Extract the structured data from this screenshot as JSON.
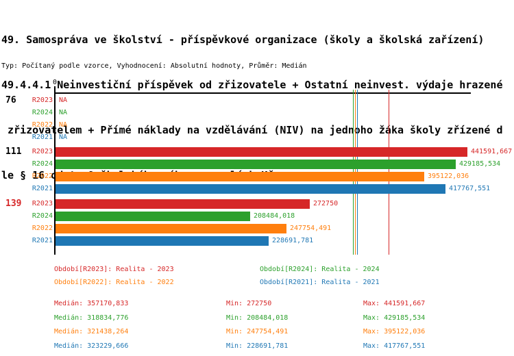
{
  "title_lines": [
    "49. Samospráva ve školství - příspěvkové organizace (školy a školská zařízení)",
    "49.4.4.1 Neinvestiční příspěvek od zřizovatele + Ostatní neinvest. výdaje hrazené",
    " zřizovatelem + Přímé náklady na vzdělávání (NIV) na jednoho žáka školy zřízené d",
    "le § 16 odst. 9 školského zákona v celých Kč"
  ],
  "subtitle": "Typ: Počítaný podle vzorce, Vyhodnocení: Absolutní hodnoty, Průměr: Medián",
  "colors": {
    "red": "#d62728",
    "green": "#2ca02c",
    "orange": "#ff7f0e",
    "blue": "#1f77b4",
    "axis": "#000000",
    "background": "#ffffff"
  },
  "chart_data": {
    "type": "bar",
    "orientation": "horizontal",
    "x_axis": {
      "zero_label": "0",
      "min": 0,
      "scale_max": 441591.667,
      "grid": false
    },
    "series_labels": [
      "R2023",
      "R2024",
      "R2022",
      "R2021"
    ],
    "series_colors": [
      "#d62728",
      "#2ca02c",
      "#ff7f0e",
      "#1f77b4"
    ],
    "na_text": "NA",
    "groups": [
      {
        "label": "76",
        "label_color": "#000000",
        "values": [
          null,
          null,
          null,
          null
        ],
        "display": [
          "NA",
          "NA",
          "NA",
          "NA"
        ]
      },
      {
        "label": "111",
        "label_color": "#000000",
        "values": [
          441591.667,
          429185.534,
          395122.036,
          417767.551
        ],
        "display": [
          "441591,667",
          "429185,534",
          "395122,036",
          "417767,551"
        ]
      },
      {
        "label": "139",
        "label_color": "#d62728",
        "values": [
          272750,
          208484.018,
          247754.491,
          228691.781
        ],
        "display": [
          "272750",
          "208484,018",
          "247754,491",
          "228691,781"
        ]
      }
    ],
    "medians": [
      357170.833,
      318834.776,
      321438.264,
      323229.666
    ]
  },
  "legend": [
    {
      "label": "Období[R2023]: Realita - 2023",
      "color": "#d62728"
    },
    {
      "label": "Období[R2024]: Realita - 2024",
      "color": "#2ca02c"
    },
    {
      "label": "Období[R2022]: Realita - 2022",
      "color": "#ff7f0e"
    },
    {
      "label": "Období[R2021]: Realita - 2021",
      "color": "#1f77b4"
    }
  ],
  "stats": [
    {
      "median": "Medián: 357170,833",
      "min": "Min: 272750",
      "max": "Max: 441591,667",
      "color": "#d62728"
    },
    {
      "median": "Medián: 318834,776",
      "min": "Min: 208484,018",
      "max": "Max: 429185,534",
      "color": "#2ca02c"
    },
    {
      "median": "Medián: 321438,264",
      "min": "Min: 247754,491",
      "max": "Max: 395122,036",
      "color": "#ff7f0e"
    },
    {
      "median": "Medián: 323229,666",
      "min": "Min: 228691,781",
      "max": "Max: 417767,551",
      "color": "#1f77b4"
    }
  ]
}
